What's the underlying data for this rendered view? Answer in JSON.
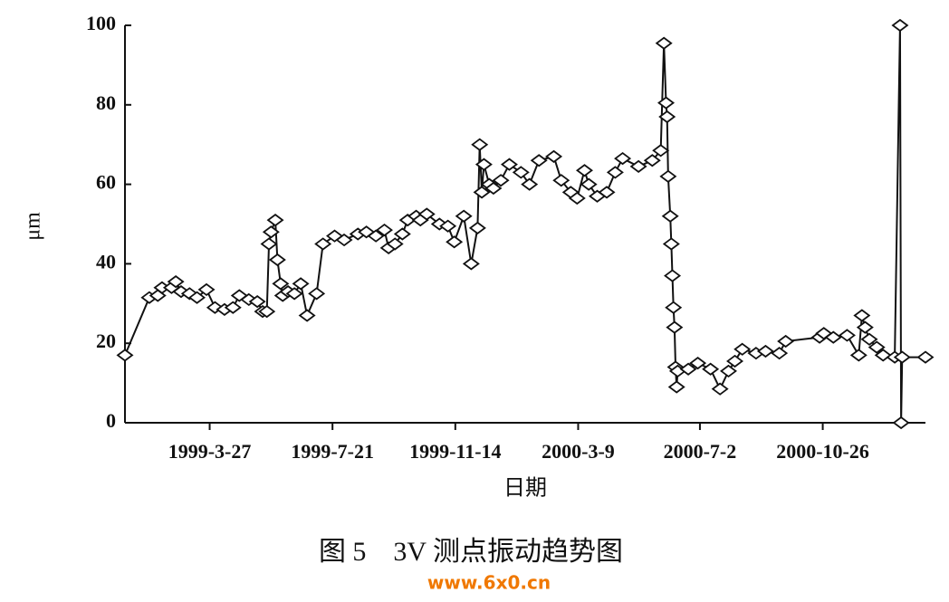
{
  "chart_data": {
    "type": "line",
    "title": "图 5　3V 测点振动趋势图",
    "watermark": "www.6x0.cn",
    "x_label": "日期",
    "y_label": "μm",
    "xlim": [
      "1999-1-6",
      "2001-1-31"
    ],
    "xticks": [
      "1999-3-27",
      "1999-7-21",
      "1999-11-14",
      "2000-3-9",
      "2000-7-2",
      "2000-10-26"
    ],
    "ylim": [
      0,
      100
    ],
    "yticks": [
      0,
      20,
      40,
      60,
      80,
      100
    ],
    "color": "#111111",
    "marker": "diamond",
    "x": [
      "1999-1-6",
      "1999-1-29",
      "1999-2-6",
      "1999-2-10",
      "1999-2-19",
      "1999-2-23",
      "1999-2-28",
      "1999-3-8",
      "1999-3-15",
      "1999-3-24",
      "1999-4-1",
      "1999-4-10",
      "1999-4-18",
      "1999-4-24",
      "1999-5-3",
      "1999-5-11",
      "1999-5-16",
      "1999-5-20",
      "1999-5-22",
      "1999-5-24",
      "1999-5-28",
      "1999-5-30",
      "1999-6-2",
      "1999-6-4",
      "1999-6-9",
      "1999-6-15",
      "1999-6-21",
      "1999-6-27",
      "1999-7-6",
      "1999-7-12",
      "1999-7-23",
      "1999-8-1",
      "1999-8-14",
      "1999-8-22",
      "1999-8-31",
      "1999-9-8",
      "1999-9-12",
      "1999-9-18",
      "1999-9-25",
      "1999-9-30",
      "1999-10-8",
      "1999-10-12",
      "1999-10-18",
      "1999-10-30",
      "1999-11-7",
      "1999-11-13",
      "1999-11-22",
      "1999-11-29",
      "1999-12-5",
      "1999-12-7",
      "1999-12-9",
      "1999-12-11",
      "1999-12-16",
      "1999-12-20",
      "1999-12-27",
      "2000-1-4",
      "2000-1-15",
      "2000-1-23",
      "2000-2-1",
      "2000-2-15",
      "2000-2-22",
      "2000-3-2",
      "2000-3-8",
      "2000-3-15",
      "2000-3-19",
      "2000-3-27",
      "2000-4-5",
      "2000-4-13",
      "2000-4-20",
      "2000-5-5",
      "2000-5-18",
      "2000-5-26",
      "2000-5-29",
      "2000-5-31",
      "2000-6-1",
      "2000-6-2",
      "2000-6-4",
      "2000-6-5",
      "2000-6-6",
      "2000-6-7",
      "2000-6-8",
      "2000-6-9",
      "2000-6-10",
      "2000-6-11",
      "2000-6-21",
      "2000-6-30",
      "2000-7-12",
      "2000-7-21",
      "2000-7-29",
      "2000-8-4",
      "2000-8-11",
      "2000-8-24",
      "2000-9-2",
      "2000-9-15",
      "2000-9-21",
      "2000-10-23",
      "2000-10-27",
      "2000-11-5",
      "2000-11-18",
      "2000-11-29",
      "2000-12-2",
      "2000-12-5",
      "2000-12-9",
      "2000-12-16",
      "2000-12-22",
      "2001-1-2",
      "2001-1-7",
      "2001-1-8",
      "2001-1-9",
      "2001-1-31"
    ],
    "values": [
      17,
      31.5,
      32,
      34,
      34,
      35.5,
      33,
      32.5,
      31.5,
      33.5,
      29,
      28.5,
      29,
      32,
      31,
      30.5,
      28,
      28,
      45,
      48,
      51,
      41,
      35,
      32,
      33,
      32.5,
      35,
      27,
      32.5,
      45,
      47,
      46,
      47.5,
      48,
      47,
      48.5,
      44,
      45,
      47.5,
      51,
      52,
      51,
      52.5,
      50,
      49.5,
      45.5,
      52,
      40,
      49,
      70,
      58,
      65,
      60,
      59,
      61,
      65,
      63,
      60,
      66,
      67,
      61,
      58,
      56.5,
      63.5,
      60,
      57,
      58,
      63,
      66.5,
      64.5,
      66,
      68.5,
      95.5,
      80.5,
      77,
      62,
      52,
      45,
      37,
      29,
      24,
      14,
      9,
      13,
      13.5,
      15,
      13.5,
      8.5,
      13,
      15.5,
      18.5,
      17.5,
      18,
      17.5,
      20.5,
      21.5,
      22.5,
      21.5,
      22,
      17,
      27,
      24,
      21,
      19,
      17,
      16.5,
      100,
      0,
      16.5,
      16.5
    ]
  }
}
